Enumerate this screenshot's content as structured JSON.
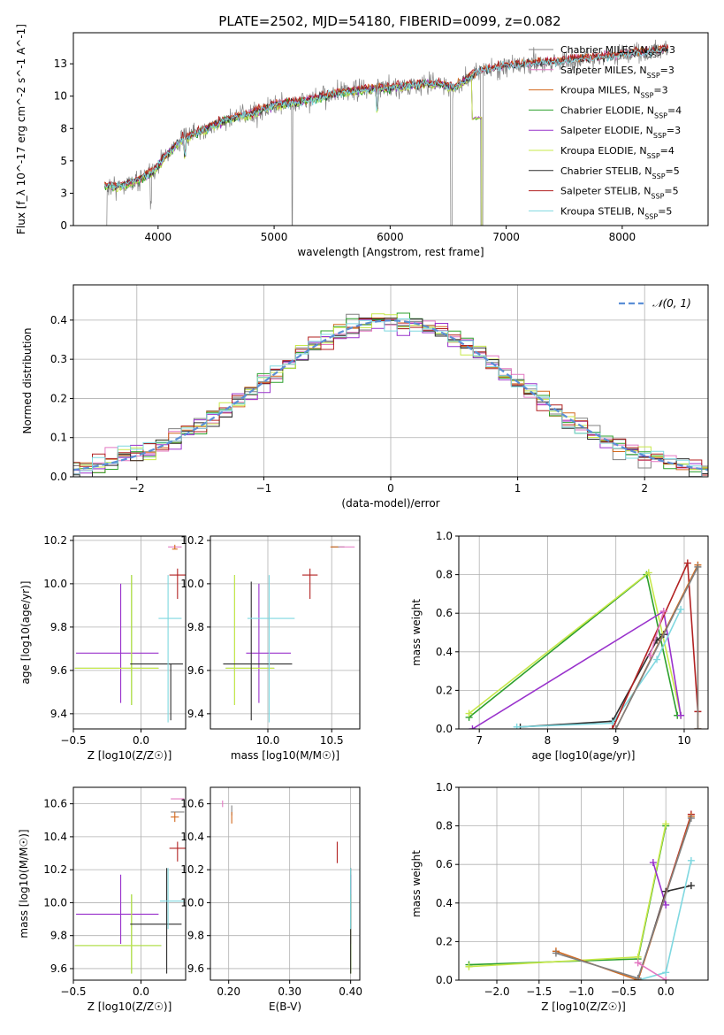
{
  "figure_title": "PLATE=2502, MJD=54180, FIBERID=0099, z=0.082",
  "palette": {
    "ChMILES": "#808080",
    "SaMILES": "#e377c2",
    "KrMILES": "#d2691e",
    "ChELODIE": "#2ca02c",
    "SaELODIE": "#9932cc",
    "KrELODIE": "#c7e84a",
    "ChSTELIB": "#2f2f2f",
    "SaSTELIB": "#b22222",
    "KrSTELIB": "#7fd8e0",
    "normal": "#5b8fd6",
    "data": "#808080"
  },
  "chart_data": [
    {
      "id": "spectrum",
      "type": "line",
      "title": "PLATE=2502, MJD=54180, FIBERID=0099, z=0.082",
      "xlabel": "wavelength [Angstrom, rest frame]",
      "ylabel": "Flux [f_λ 10^-17 erg cm^-2 s^-1 A^-1]",
      "xlim": [
        3270,
        8740
      ],
      "ylim": [
        0,
        14.9
      ],
      "xticks": [
        4000,
        5000,
        6000,
        7000,
        8000
      ],
      "yticks": [
        0.0,
        2.5,
        5.0,
        7.5,
        10.0,
        12.5
      ],
      "grid": false,
      "legend_position": "upper-right",
      "data_trend": {
        "x": [
          3530,
          3650,
          3800,
          3950,
          4050,
          4200,
          4400,
          4600,
          4800,
          5000,
          5200,
          5400,
          5600,
          5800,
          6000,
          6200,
          6400,
          6550,
          6700,
          6800,
          7000,
          7200,
          7400,
          7600,
          7800,
          8000,
          8200,
          8400
        ],
        "y": [
          3.1,
          3.0,
          3.4,
          4.1,
          5.2,
          6.6,
          7.4,
          8.2,
          8.6,
          9.3,
          9.5,
          9.9,
          10.3,
          10.5,
          10.6,
          10.8,
          11.0,
          10.6,
          11.6,
          12.0,
          12.3,
          12.5,
          12.6,
          12.8,
          13.0,
          13.2,
          13.4,
          13.6
        ]
      },
      "series": [
        {
          "key": "ChMILES",
          "legend": "Chabrier MILES, N_SSP=3",
          "offset": 0.0
        },
        {
          "key": "SaMILES",
          "legend": "Salpeter MILES, N_SSP=3",
          "offset": 0.05
        },
        {
          "key": "KrMILES",
          "legend": "Kroupa MILES, N_SSP=3",
          "offset": 0.1
        },
        {
          "key": "ChELODIE",
          "legend": "Chabrier ELODIE, N_SSP=4",
          "offset": -0.05
        },
        {
          "key": "SaELODIE",
          "legend": "Salpeter ELODIE, N_SSP=3",
          "offset": 0.0
        },
        {
          "key": "KrELODIE",
          "legend": "Kroupa ELODIE, N_SSP=4",
          "offset": -0.1
        },
        {
          "key": "ChSTELIB",
          "legend": "Chabrier STELIB, N_SSP=5",
          "offset": 0.05
        },
        {
          "key": "SaSTELIB",
          "legend": "Salpeter STELIB, N_SSP=5",
          "offset": 0.15
        },
        {
          "key": "KrSTELIB",
          "legend": "Kroupa STELIB, N_SSP=5",
          "offset": 0.0
        }
      ]
    },
    {
      "id": "residuals",
      "type": "line",
      "xlabel": "(data-model)/error",
      "ylabel": "Normed distribution",
      "xlim": [
        -2.5,
        2.5
      ],
      "ylim": [
        0,
        0.49
      ],
      "xticks": [
        -2,
        -1,
        0,
        1,
        2
      ],
      "yticks": [
        0.0,
        0.1,
        0.2,
        0.3,
        0.4
      ],
      "grid": true,
      "legend": "𝒩(0, 1)",
      "legend_position": "upper-right",
      "bin_width": 0.1
    },
    {
      "id": "age_Z",
      "type": "scatter",
      "xlabel": "Z [log10(Z/Z☉)]",
      "ylabel": "age  [log10(age/yr)]",
      "xlim": [
        -0.5,
        0.33
      ],
      "ylim": [
        9.33,
        10.22
      ],
      "xticks": [
        -0.5,
        0.0
      ],
      "yticks": [
        9.4,
        9.6,
        9.8,
        10.0,
        10.2
      ],
      "grid": true,
      "points": [
        {
          "key": "ChMILES",
          "x": 0.22,
          "y": 10.17,
          "xerr": [
            0.0,
            0.0
          ],
          "yerr": [
            0.0,
            0.0
          ]
        },
        {
          "key": "SaMILES",
          "x": 0.25,
          "y": 10.17,
          "xerr": [
            0.05,
            0.05
          ],
          "yerr": [
            0.0,
            0.0
          ]
        },
        {
          "key": "KrMILES",
          "x": 0.25,
          "y": 10.16,
          "xerr": [
            0.02,
            0.02
          ],
          "yerr": [
            0.0,
            0.02
          ]
        },
        {
          "key": "ChELODIE",
          "x": -0.07,
          "y": 9.61,
          "xerr": [
            0.42,
            0.2
          ],
          "yerr": [
            0.17,
            0.43
          ]
        },
        {
          "key": "SaELODIE",
          "x": -0.15,
          "y": 9.68,
          "xerr": [
            0.33,
            0.28
          ],
          "yerr": [
            0.23,
            0.32
          ]
        },
        {
          "key": "KrELODIE",
          "x": -0.07,
          "y": 9.61,
          "xerr": [
            0.42,
            0.2
          ],
          "yerr": [
            0.17,
            0.43
          ]
        },
        {
          "key": "ChSTELIB",
          "x": 0.22,
          "y": 9.63,
          "xerr": [
            0.3,
            0.09
          ],
          "yerr": [
            0.26,
            0.0
          ]
        },
        {
          "key": "SaSTELIB",
          "x": 0.27,
          "y": 10.04,
          "xerr": [
            0.06,
            0.06
          ],
          "yerr": [
            0.11,
            0.03
          ]
        },
        {
          "key": "KrSTELIB",
          "x": 0.2,
          "y": 9.84,
          "xerr": [
            0.07,
            0.1
          ],
          "yerr": [
            0.48,
            0.2
          ]
        }
      ]
    },
    {
      "id": "age_mass",
      "type": "scatter",
      "xlabel": "mass [log10(M/M☉)]",
      "ylabel": "",
      "xlim": [
        9.55,
        10.72
      ],
      "ylim": [
        9.33,
        10.22
      ],
      "xticks": [
        10.0,
        10.5
      ],
      "yticks": [
        9.4,
        9.6,
        9.8,
        10.0,
        10.2
      ],
      "grid": true,
      "points": [
        {
          "key": "ChMILES",
          "x": 10.55,
          "y": 10.17,
          "xerr": [
            0.05,
            0.05
          ],
          "yerr": [
            0.0,
            0.0
          ]
        },
        {
          "key": "SaMILES",
          "x": 10.62,
          "y": 10.17,
          "xerr": [
            0.06,
            0.06
          ],
          "yerr": [
            0.0,
            0.0
          ]
        },
        {
          "key": "KrMILES",
          "x": 10.52,
          "y": 10.17,
          "xerr": [
            0.03,
            0.03
          ],
          "yerr": [
            0.0,
            0.0
          ]
        },
        {
          "key": "ChELODIE",
          "x": 9.74,
          "y": 9.61,
          "xerr": [
            0.07,
            0.31
          ],
          "yerr": [
            0.17,
            0.43
          ]
        },
        {
          "key": "SaELODIE",
          "x": 9.93,
          "y": 9.68,
          "xerr": [
            0.1,
            0.25
          ],
          "yerr": [
            0.23,
            0.32
          ]
        },
        {
          "key": "KrELODIE",
          "x": 9.74,
          "y": 9.61,
          "xerr": [
            0.07,
            0.31
          ],
          "yerr": [
            0.17,
            0.43
          ]
        },
        {
          "key": "ChSTELIB",
          "x": 9.87,
          "y": 9.63,
          "xerr": [
            0.22,
            0.32
          ],
          "yerr": [
            0.26,
            0.38
          ]
        },
        {
          "key": "SaSTELIB",
          "x": 10.33,
          "y": 10.04,
          "xerr": [
            0.06,
            0.06
          ],
          "yerr": [
            0.11,
            0.03
          ]
        },
        {
          "key": "KrSTELIB",
          "x": 10.01,
          "y": 9.84,
          "xerr": [
            0.17,
            0.2
          ],
          "yerr": [
            0.48,
            0.2
          ]
        }
      ]
    },
    {
      "id": "weight_age",
      "type": "line",
      "xlabel": "age  [log10(age/yr)]",
      "ylabel": "mass weight",
      "xlim": [
        6.7,
        10.35
      ],
      "ylim": [
        0,
        1.0
      ],
      "xticks": [
        7,
        8,
        9,
        10
      ],
      "yticks": [
        0.0,
        0.2,
        0.4,
        0.6,
        0.8,
        1.0
      ],
      "grid": true,
      "series": [
        {
          "key": "ChELODIE",
          "x": [
            6.85,
            9.45,
            9.9
          ],
          "y": [
            0.06,
            0.8,
            0.07
          ]
        },
        {
          "key": "KrELODIE",
          "x": [
            6.85,
            9.48,
            9.95
          ],
          "y": [
            0.08,
            0.81,
            0.07
          ]
        },
        {
          "key": "SaELODIE",
          "x": [
            6.9,
            9.7,
            9.95
          ],
          "y": [
            0.0,
            0.61,
            0.07
          ]
        },
        {
          "key": "ChSTELIB",
          "x": [
            7.6,
            8.95,
            9.6,
            9.7
          ],
          "y": [
            0.01,
            0.04,
            0.46,
            0.49
          ]
        },
        {
          "key": "KrSTELIB",
          "x": [
            7.55,
            8.95,
            9.6,
            9.95
          ],
          "y": [
            0.01,
            0.03,
            0.36,
            0.62
          ]
        },
        {
          "key": "SaSTELIB",
          "x": [
            8.95,
            10.05,
            10.2
          ],
          "y": [
            0.0,
            0.86,
            0.09
          ]
        },
        {
          "key": "KrMILES",
          "x": [
            9.0,
            10.2,
            10.2
          ],
          "y": [
            0.0,
            0.85,
            0.0
          ]
        },
        {
          "key": "ChMILES",
          "x": [
            9.0,
            10.2,
            10.2
          ],
          "y": [
            0.0,
            0.84,
            0.0
          ]
        },
        {
          "key": "SaMILES",
          "x": [
            9.5,
            9.7
          ],
          "y": [
            0.38,
            0.61
          ]
        }
      ]
    },
    {
      "id": "mass_Z",
      "type": "scatter",
      "xlabel": "Z [log10(Z/Z☉)]",
      "ylabel": "mass [log10(M/M☉)]",
      "xlim": [
        -0.5,
        0.33
      ],
      "ylim": [
        9.53,
        10.7
      ],
      "xticks": [
        -0.5,
        0.0
      ],
      "yticks": [
        9.6,
        9.8,
        10.0,
        10.2,
        10.4,
        10.6
      ],
      "grid": true,
      "points": [
        {
          "key": "SaMILES",
          "x": 0.27,
          "y": 10.63,
          "xerr": [
            0.05,
            0.05
          ],
          "yerr": [
            0.0,
            0.0
          ]
        },
        {
          "key": "ChMILES",
          "x": 0.27,
          "y": 10.55,
          "xerr": [
            0.05,
            0.05
          ],
          "yerr": [
            0.0,
            0.0
          ]
        },
        {
          "key": "KrMILES",
          "x": 0.25,
          "y": 10.52,
          "xerr": [
            0.03,
            0.03
          ],
          "yerr": [
            0.03,
            0.03
          ]
        },
        {
          "key": "ChELODIE",
          "x": -0.07,
          "y": 9.74,
          "xerr": [
            0.42,
            0.22
          ],
          "yerr": [
            0.17,
            0.31
          ]
        },
        {
          "key": "SaELODIE",
          "x": -0.15,
          "y": 9.93,
          "xerr": [
            0.33,
            0.28
          ],
          "yerr": [
            0.18,
            0.24
          ]
        },
        {
          "key": "KrELODIE",
          "x": -0.07,
          "y": 9.74,
          "xerr": [
            0.42,
            0.22
          ],
          "yerr": [
            0.17,
            0.31
          ]
        },
        {
          "key": "ChSTELIB",
          "x": 0.19,
          "y": 9.87,
          "xerr": [
            0.27,
            0.11
          ],
          "yerr": [
            0.3,
            0.34
          ]
        },
        {
          "key": "SaSTELIB",
          "x": 0.27,
          "y": 10.33,
          "xerr": [
            0.06,
            0.06
          ],
          "yerr": [
            0.08,
            0.04
          ]
        },
        {
          "key": "KrSTELIB",
          "x": 0.2,
          "y": 10.01,
          "xerr": [
            0.06,
            0.12
          ],
          "yerr": [
            0.17,
            0.2
          ]
        }
      ]
    },
    {
      "id": "mass_ebv",
      "type": "scatter",
      "xlabel": "E(B-V)",
      "ylabel": "",
      "xlim": [
        0.17,
        0.415
      ],
      "ylim": [
        9.53,
        10.7
      ],
      "xticks": [
        0.2,
        0.3,
        0.4
      ],
      "yticks": [
        9.6,
        9.8,
        10.0,
        10.2,
        10.4,
        10.6
      ],
      "grid": true,
      "points": [
        {
          "key": "SaMILES",
          "x": 0.19,
          "y": 10.62,
          "xerr": [
            0.0,
            0.0
          ],
          "yerr": [
            0.04,
            0.0
          ]
        },
        {
          "key": "ChMILES",
          "x": 0.205,
          "y": 10.56,
          "xerr": [
            0.0,
            0.0
          ],
          "yerr": [
            0.03,
            0.03
          ]
        },
        {
          "key": "KrMILES",
          "x": 0.205,
          "y": 10.52,
          "xerr": [
            0.0,
            0.0
          ],
          "yerr": [
            0.04,
            0.03
          ]
        },
        {
          "key": "ChELODIE",
          "x": 0.4,
          "y": 9.74,
          "xerr": [
            0.0,
            0.0
          ],
          "yerr": [
            0.17,
            0.31
          ]
        },
        {
          "key": "SaELODIE",
          "x": 0.4,
          "y": 9.93,
          "xerr": [
            0.0,
            0.0
          ],
          "yerr": [
            0.18,
            0.24
          ]
        },
        {
          "key": "KrELODIE",
          "x": 0.4,
          "y": 9.74,
          "xerr": [
            0.0,
            0.0
          ],
          "yerr": [
            0.17,
            0.31
          ]
        },
        {
          "key": "ChSTELIB",
          "x": 0.4,
          "y": 9.87,
          "xerr": [
            0.0,
            0.0
          ],
          "yerr": [
            0.3,
            0.34
          ]
        },
        {
          "key": "SaSTELIB",
          "x": 0.378,
          "y": 10.28,
          "xerr": [
            0.0,
            0.0
          ],
          "yerr": [
            0.04,
            0.09
          ]
        },
        {
          "key": "KrSTELIB",
          "x": 0.4,
          "y": 10.01,
          "xerr": [
            0.0,
            0.0
          ],
          "yerr": [
            0.17,
            0.2
          ]
        }
      ]
    },
    {
      "id": "weight_Z",
      "type": "line",
      "xlabel": "Z [log10(Z/Z☉)]",
      "ylabel": "mass weight",
      "xlim": [
        -2.45,
        0.5
      ],
      "ylim": [
        0,
        1.0
      ],
      "xticks": [
        -2.0,
        -1.5,
        -1.0,
        -0.5,
        0.0
      ],
      "yticks": [
        0.0,
        0.2,
        0.4,
        0.6,
        0.8,
        1.0
      ],
      "grid": true,
      "series": [
        {
          "key": "ChELODIE",
          "x": [
            -2.33,
            -0.33,
            0.0
          ],
          "y": [
            0.08,
            0.11,
            0.8
          ]
        },
        {
          "key": "KrELODIE",
          "x": [
            -2.33,
            -0.33,
            0.0
          ],
          "y": [
            0.07,
            0.12,
            0.81
          ]
        },
        {
          "key": "SaELODIE",
          "x": [
            -0.15,
            0.0
          ],
          "y": [
            0.61,
            0.39
          ]
        },
        {
          "key": "ChSTELIB",
          "x": [
            -0.33,
            0.0,
            0.3
          ],
          "y": [
            0.0,
            0.46,
            0.49
          ]
        },
        {
          "key": "KrSTELIB",
          "x": [
            -0.33,
            0.0,
            0.3
          ],
          "y": [
            0.0,
            0.04,
            0.62
          ]
        },
        {
          "key": "SaSTELIB",
          "x": [
            -0.33,
            0.3
          ],
          "y": [
            0.0,
            0.86
          ]
        },
        {
          "key": "KrMILES",
          "x": [
            -1.3,
            -0.33,
            0.3
          ],
          "y": [
            0.15,
            0.0,
            0.85
          ]
        },
        {
          "key": "ChMILES",
          "x": [
            -1.3,
            -0.33,
            0.3
          ],
          "y": [
            0.14,
            0.01,
            0.84
          ]
        },
        {
          "key": "SaMILES",
          "x": [
            -0.33,
            0.0
          ],
          "y": [
            0.09,
            0.0
          ]
        }
      ]
    }
  ]
}
